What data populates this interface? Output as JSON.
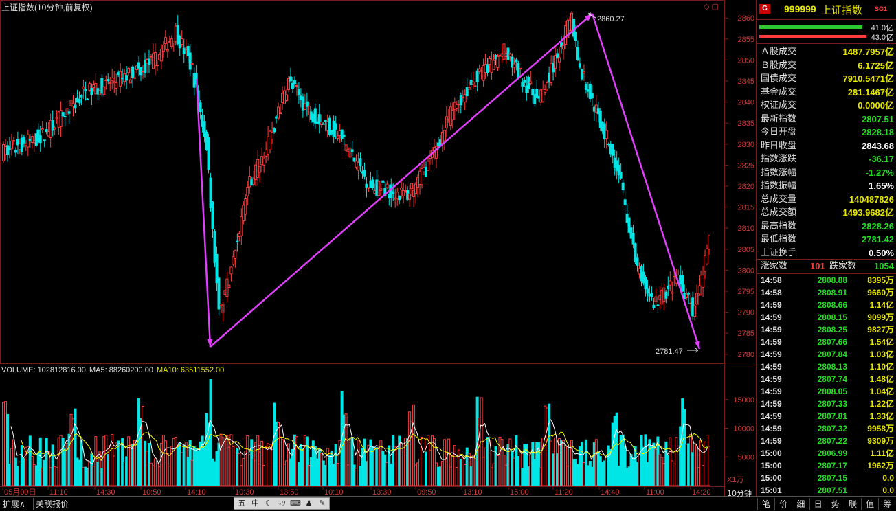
{
  "title": "上证指数(10分钟,前复权)",
  "volume_info": {
    "volume": "VOLUME: 102812816.00",
    "ma5": "MA5: 88260200.00",
    "ma10": "MA10: 63511552.00"
  },
  "colors": {
    "up": "#ff3c3c",
    "down": "#00e5e5",
    "ma5": "#ffffff",
    "ma10": "#ffff00",
    "arrow": "#e040fb",
    "grid": "#7a1b1b"
  },
  "price_axis": {
    "ticks": [
      2860,
      2855,
      2850,
      2845,
      2840,
      2835,
      2830,
      2825,
      2820,
      2815,
      2810,
      2805,
      2800,
      2795,
      2790,
      2785,
      2780
    ]
  },
  "vol_axis": {
    "ticks": [
      "15000",
      "10000",
      "5000"
    ],
    "unit": "X1万"
  },
  "time_axis": [
    "05月09日",
    "11:10",
    "14:30",
    "10:50",
    "14:10",
    "10:30",
    "13:50",
    "10:10",
    "13:30",
    "09:50",
    "13:10",
    "15:00",
    "11:20",
    "14:40",
    "11:00",
    "14:20"
  ],
  "period_label": "10分钟",
  "annotations": {
    "high": "2860.27",
    "low": "2781.47"
  },
  "chart_data": {
    "type": "candlestick",
    "price_range": [
      2778,
      2862
    ],
    "high_label": "2860.27",
    "low_label": "2781.47",
    "trend_arrows": [
      [
        2782,
        2780.8
      ],
      [
        2860.5,
        2852.4
      ],
      [
        2781.4
      ]
    ]
  },
  "quote": {
    "code": "999999",
    "name": "上证指数",
    "badge": "SG1",
    "bar_up": "41.0亿",
    "bar_down": "43.0亿",
    "rows": [
      {
        "label": "Ａ股成交",
        "value": "1487.7957亿",
        "color": "#e6e600"
      },
      {
        "label": "Ｂ股成交",
        "value": "6.1725亿",
        "color": "#e6e600"
      },
      {
        "label": "国债成交",
        "value": "7910.5471亿",
        "color": "#e6e600"
      },
      {
        "label": "基金成交",
        "value": "281.1467亿",
        "color": "#e6e600"
      },
      {
        "label": "权证成交",
        "value": "0.0000亿",
        "color": "#e6e600"
      },
      {
        "label": "最新指数",
        "value": "2807.51",
        "color": "#22dd22"
      },
      {
        "label": "今日开盘",
        "value": "2828.18",
        "color": "#22dd22"
      },
      {
        "label": "昨日收盘",
        "value": "2843.68",
        "color": "#ffffff"
      },
      {
        "label": "指数涨跌",
        "value": "-36.17",
        "color": "#22dd22"
      },
      {
        "label": "指数涨幅",
        "value": "-1.27%",
        "color": "#22dd22"
      },
      {
        "label": "指数振幅",
        "value": "1.65%",
        "color": "#ffffff"
      },
      {
        "label": "总成交量",
        "value": "140487826",
        "color": "#e6e600"
      },
      {
        "label": "总成交额",
        "value": "1493.9682亿",
        "color": "#e6e600"
      },
      {
        "label": "最高指数",
        "value": "2828.26",
        "color": "#22dd22"
      },
      {
        "label": "最低指数",
        "value": "2781.42",
        "color": "#22dd22"
      },
      {
        "label": "上证换手",
        "value": "0.50%",
        "color": "#ffffff"
      }
    ],
    "updown": {
      "up_label": "涨家数",
      "up_value": "101",
      "down_label": "跌家数",
      "down_value": "1054"
    },
    "ticks": [
      {
        "t": "14:58",
        "p": "2808.88",
        "v": "8395万"
      },
      {
        "t": "14:58",
        "p": "2808.91",
        "v": "9660万"
      },
      {
        "t": "14:59",
        "p": "2808.66",
        "v": "1.14亿"
      },
      {
        "t": "14:59",
        "p": "2808.15",
        "v": "9099万"
      },
      {
        "t": "14:59",
        "p": "2808.25",
        "v": "9827万"
      },
      {
        "t": "14:59",
        "p": "2807.66",
        "v": "1.54亿"
      },
      {
        "t": "14:59",
        "p": "2807.84",
        "v": "1.03亿"
      },
      {
        "t": "14:59",
        "p": "2808.13",
        "v": "1.10亿"
      },
      {
        "t": "14:59",
        "p": "2807.74",
        "v": "1.48亿"
      },
      {
        "t": "14:59",
        "p": "2808.05",
        "v": "1.04亿"
      },
      {
        "t": "14:59",
        "p": "2807.33",
        "v": "1.22亿"
      },
      {
        "t": "14:59",
        "p": "2807.81",
        "v": "1.33亿"
      },
      {
        "t": "14:59",
        "p": "2807.32",
        "v": "9958万"
      },
      {
        "t": "14:59",
        "p": "2807.22",
        "v": "9309万"
      },
      {
        "t": "15:00",
        "p": "2806.99",
        "v": "1.11亿"
      },
      {
        "t": "15:00",
        "p": "2807.17",
        "v": "1962万"
      },
      {
        "t": "15:00",
        "p": "2807.15",
        "v": "0.0"
      },
      {
        "t": "15:01",
        "p": "2807.51",
        "v": "0.0"
      }
    ]
  },
  "bottom": {
    "left_tabs": [
      "扩展∧",
      "关联报价"
    ],
    "tools": [
      "五",
      "中",
      "☾",
      "∘୨",
      "⌨",
      "♟",
      "✎"
    ],
    "right_tabs": [
      "笔",
      "价",
      "细",
      "日",
      "势",
      "联",
      "值",
      "筹"
    ]
  }
}
